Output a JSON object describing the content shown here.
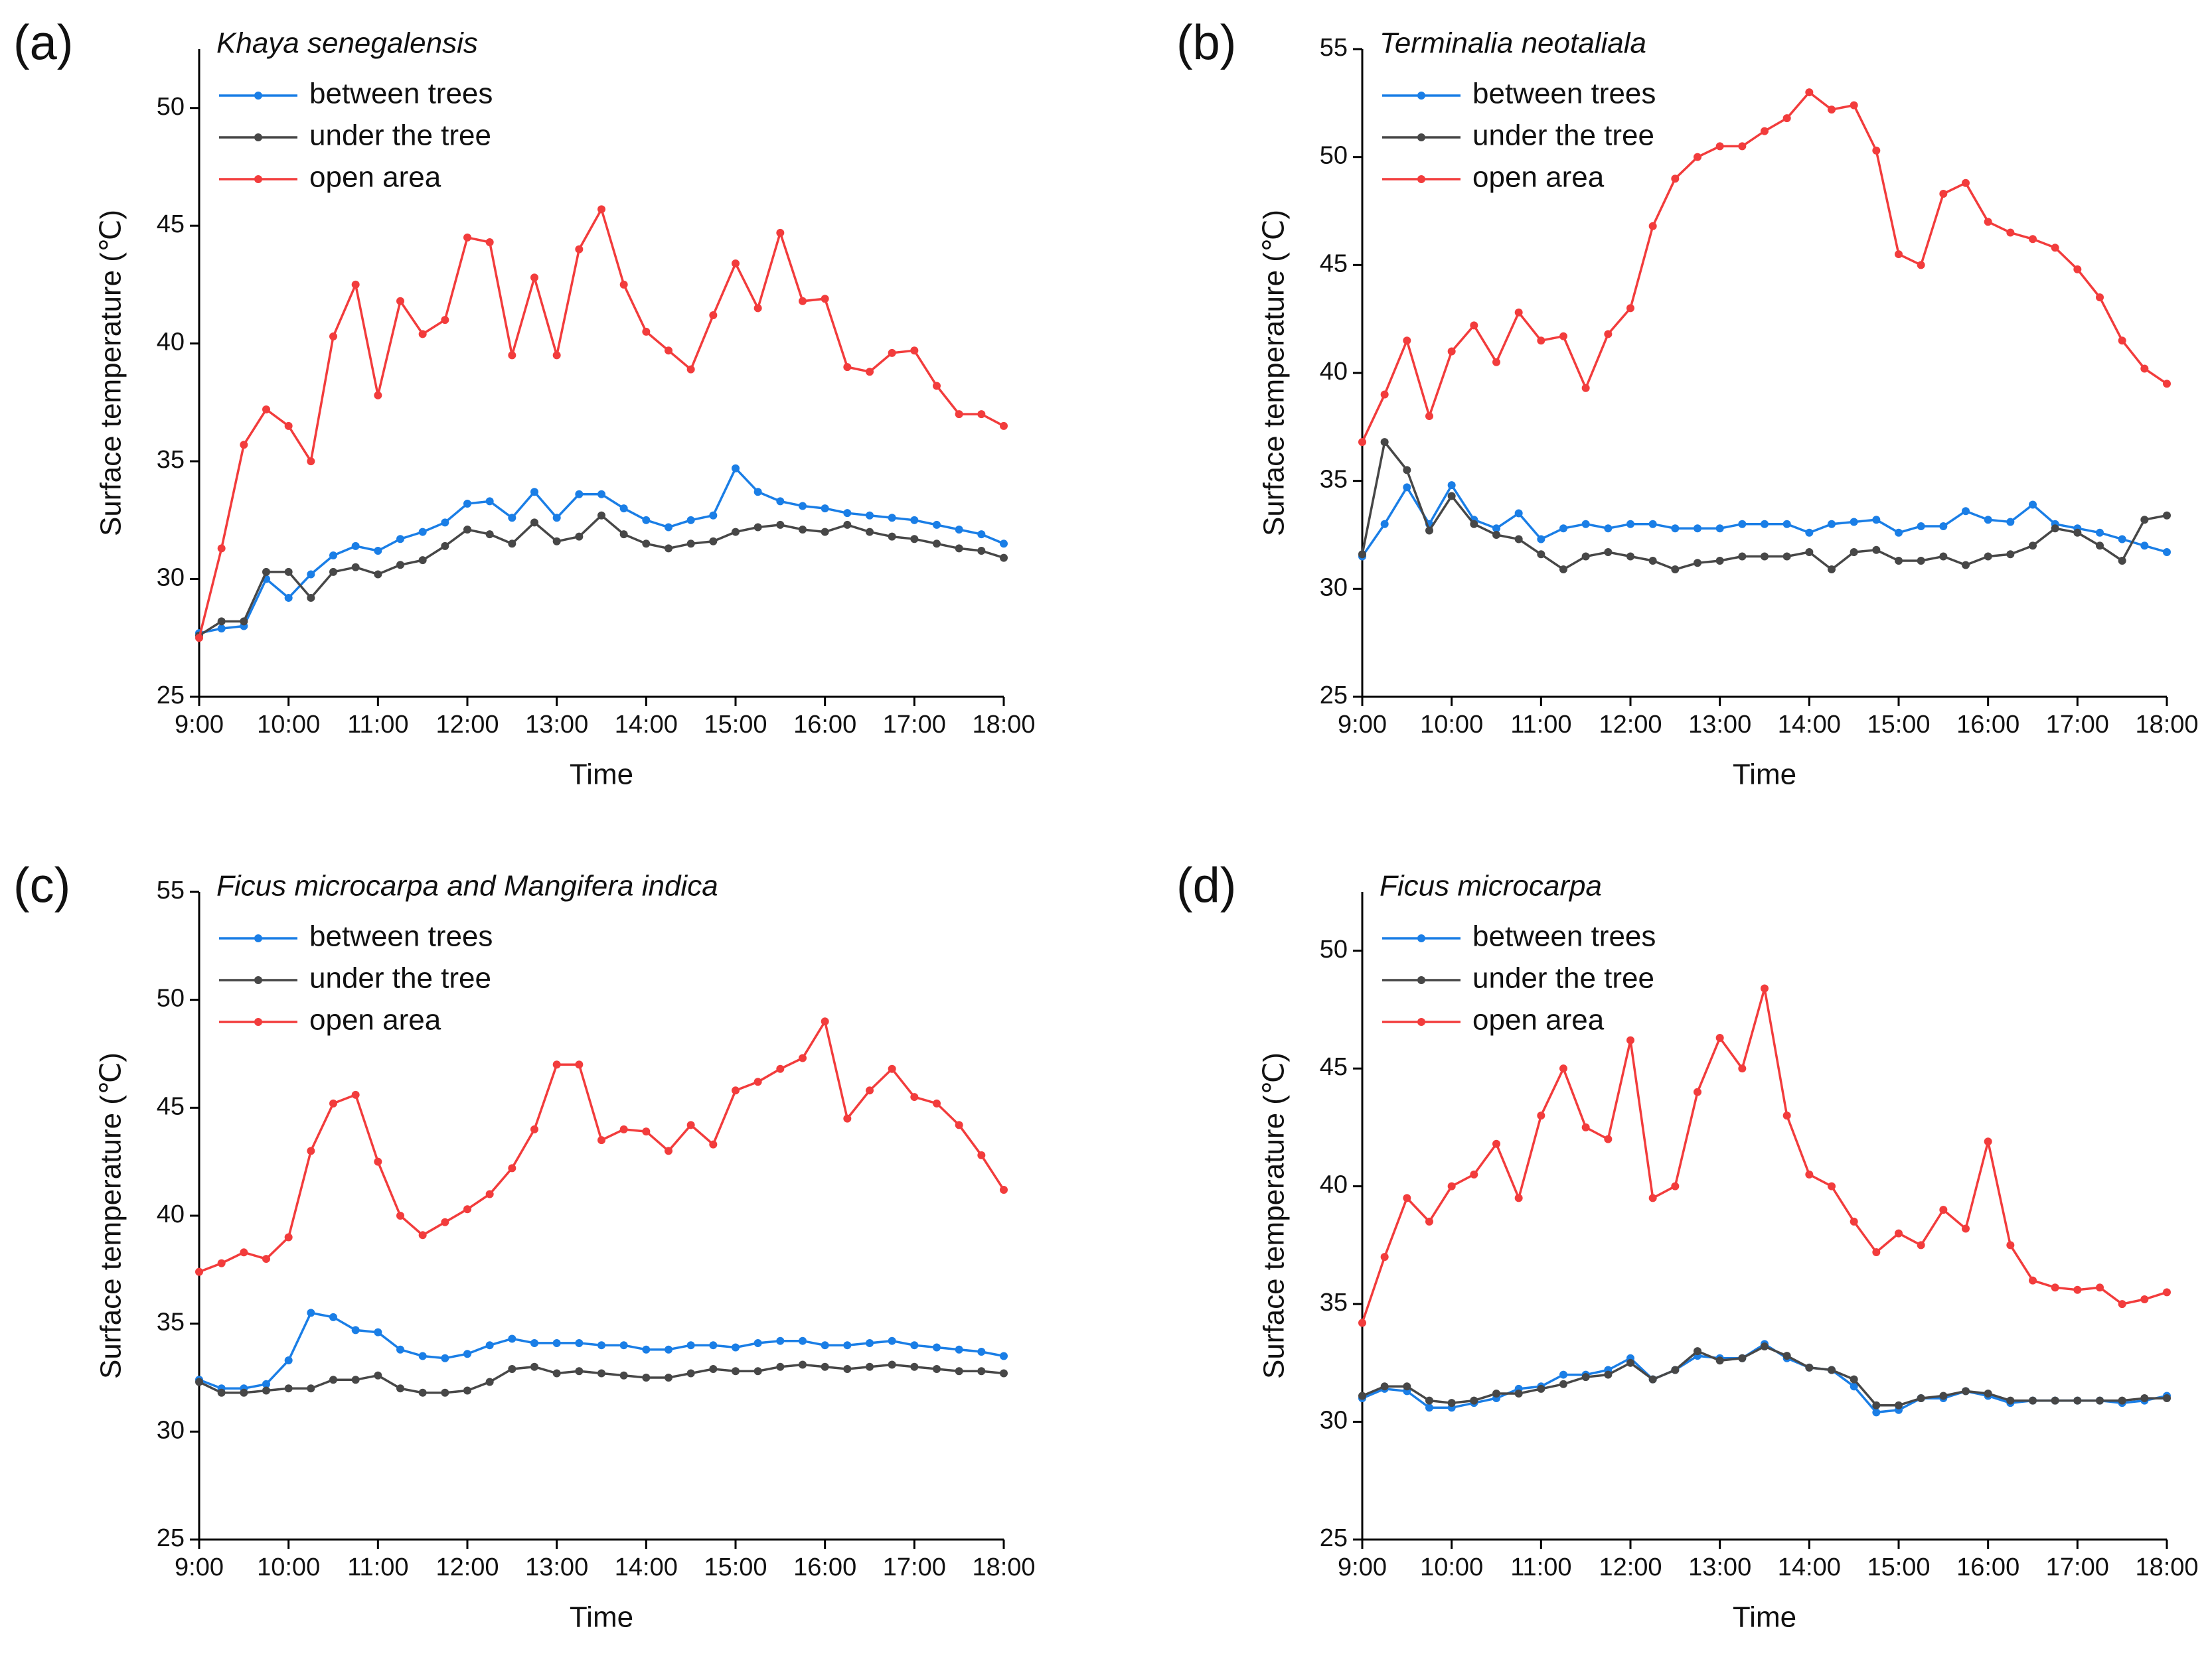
{
  "chart_data": [
    {
      "type": "line",
      "panel_label": "(a)",
      "title": "Khaya senegalensis",
      "xlabel": "Time",
      "ylabel": "Surface temperature (℃)",
      "legend": "upper left",
      "x": [
        9,
        9.25,
        9.5,
        9.75,
        10,
        10.25,
        10.5,
        10.75,
        11,
        11.25,
        11.5,
        11.75,
        12,
        12.25,
        12.5,
        12.75,
        13,
        13.25,
        13.5,
        13.75,
        14,
        14.25,
        14.5,
        14.75,
        15,
        15.25,
        15.5,
        15.75,
        16,
        16.25,
        16.5,
        16.75,
        17,
        17.25,
        17.5,
        17.75,
        18
      ],
      "xlim": [
        9,
        18
      ],
      "xticks": [
        {
          "value": 9,
          "label": "9:00"
        },
        {
          "value": 10,
          "label": "10:00"
        },
        {
          "value": 11,
          "label": "11:00"
        },
        {
          "value": 12,
          "label": "12:00"
        },
        {
          "value": 13,
          "label": "13:00"
        },
        {
          "value": 14,
          "label": "14:00"
        },
        {
          "value": 15,
          "label": "15:00"
        },
        {
          "value": 16,
          "label": "16:00"
        },
        {
          "value": 17,
          "label": "17:00"
        },
        {
          "value": 18,
          "label": "18:00"
        }
      ],
      "ylim": [
        25,
        52.5
      ],
      "yticks": [
        25,
        30,
        35,
        40,
        45,
        50
      ],
      "series": [
        {
          "name": "between trees",
          "color": "#1a7ee6",
          "values": [
            27.7,
            27.9,
            28,
            30,
            29.2,
            30.2,
            31,
            31.4,
            31.2,
            31.7,
            32,
            32.4,
            33.2,
            33.3,
            32.6,
            33.7,
            32.6,
            33.6,
            33.6,
            33,
            32.5,
            32.2,
            32.5,
            32.7,
            34.7,
            33.7,
            33.3,
            33.1,
            33,
            32.8,
            32.7,
            32.6,
            32.5,
            32.3,
            32.1,
            31.9,
            31.5
          ]
        },
        {
          "name": "under the tree",
          "color": "#474747",
          "values": [
            27.6,
            28.2,
            28.2,
            30.3,
            30.3,
            29.2,
            30.3,
            30.5,
            30.2,
            30.6,
            30.8,
            31.4,
            32.1,
            31.9,
            31.5,
            32.4,
            31.6,
            31.8,
            32.7,
            31.9,
            31.5,
            31.3,
            31.5,
            31.6,
            32,
            32.2,
            32.3,
            32.1,
            32,
            32.3,
            32,
            31.8,
            31.7,
            31.5,
            31.3,
            31.2,
            30.9
          ]
        },
        {
          "name": "open area",
          "color": "#f23c3c",
          "values": [
            27.5,
            31.3,
            35.7,
            37.2,
            36.5,
            35,
            40.3,
            42.5,
            37.8,
            41.8,
            40.4,
            41,
            44.5,
            44.3,
            39.5,
            42.8,
            39.5,
            44,
            45.7,
            42.5,
            40.5,
            39.7,
            38.9,
            41.2,
            43.4,
            41.5,
            44.7,
            41.8,
            41.9,
            39,
            38.8,
            39.6,
            39.7,
            38.2,
            37,
            37,
            36.5
          ]
        }
      ]
    },
    {
      "type": "line",
      "panel_label": "(b)",
      "title": "Terminalia neotaliala",
      "xlabel": "Time",
      "ylabel": "Surface temperature (℃)",
      "legend": "upper left",
      "x": [
        9,
        9.25,
        9.5,
        9.75,
        10,
        10.25,
        10.5,
        10.75,
        11,
        11.25,
        11.5,
        11.75,
        12,
        12.25,
        12.5,
        12.75,
        13,
        13.25,
        13.5,
        13.75,
        14,
        14.25,
        14.5,
        14.75,
        15,
        15.25,
        15.5,
        15.75,
        16,
        16.25,
        16.5,
        16.75,
        17,
        17.25,
        17.5,
        17.75,
        18
      ],
      "xlim": [
        9,
        18
      ],
      "xticks": [
        {
          "value": 9,
          "label": "9:00"
        },
        {
          "value": 10,
          "label": "10:00"
        },
        {
          "value": 11,
          "label": "11:00"
        },
        {
          "value": 12,
          "label": "12:00"
        },
        {
          "value": 13,
          "label": "13:00"
        },
        {
          "value": 14,
          "label": "14:00"
        },
        {
          "value": 15,
          "label": "15:00"
        },
        {
          "value": 16,
          "label": "16:00"
        },
        {
          "value": 17,
          "label": "17:00"
        },
        {
          "value": 18,
          "label": "18:00"
        }
      ],
      "ylim": [
        25,
        55
      ],
      "yticks": [
        25,
        30,
        35,
        40,
        45,
        50,
        55
      ],
      "series": [
        {
          "name": "between trees",
          "color": "#1a7ee6",
          "values": [
            31.5,
            33,
            34.7,
            33,
            34.8,
            33.2,
            32.8,
            33.5,
            32.3,
            32.8,
            33,
            32.8,
            33,
            33,
            32.8,
            32.8,
            32.8,
            33,
            33,
            33,
            32.6,
            33,
            33.1,
            33.2,
            32.6,
            32.9,
            32.9,
            33.6,
            33.2,
            33.1,
            33.9,
            33,
            32.8,
            32.6,
            32.3,
            32,
            31.7
          ]
        },
        {
          "name": "under the tree",
          "color": "#474747",
          "values": [
            31.6,
            36.8,
            35.5,
            32.7,
            34.3,
            33,
            32.5,
            32.3,
            31.6,
            30.9,
            31.5,
            31.7,
            31.5,
            31.3,
            30.9,
            31.2,
            31.3,
            31.5,
            31.5,
            31.5,
            31.7,
            30.9,
            31.7,
            31.8,
            31.3,
            31.3,
            31.5,
            31.1,
            31.5,
            31.6,
            32,
            32.8,
            32.6,
            32,
            31.3,
            33.2,
            33.4
          ]
        },
        {
          "name": "open area",
          "color": "#f23c3c",
          "values": [
            36.8,
            39,
            41.5,
            38,
            41,
            42.2,
            40.5,
            42.8,
            41.5,
            41.7,
            39.3,
            41.8,
            43,
            46.8,
            49,
            50,
            50.5,
            50.5,
            51.2,
            51.8,
            53,
            52.2,
            52.4,
            50.3,
            45.5,
            45,
            48.3,
            48.8,
            47,
            46.5,
            46.2,
            45.8,
            44.8,
            43.5,
            41.5,
            40.2,
            39.5
          ]
        }
      ]
    },
    {
      "type": "line",
      "panel_label": "(c)",
      "title": "Ficus microcarpa and Mangifera indica",
      "xlabel": "Time",
      "ylabel": "Surface temperature (℃)",
      "legend": "upper left",
      "x": [
        9,
        9.25,
        9.5,
        9.75,
        10,
        10.25,
        10.5,
        10.75,
        11,
        11.25,
        11.5,
        11.75,
        12,
        12.25,
        12.5,
        12.75,
        13,
        13.25,
        13.5,
        13.75,
        14,
        14.25,
        14.5,
        14.75,
        15,
        15.25,
        15.5,
        15.75,
        16,
        16.25,
        16.5,
        16.75,
        17,
        17.25,
        17.5,
        17.75,
        18
      ],
      "xlim": [
        9,
        18
      ],
      "xticks": [
        {
          "value": 9,
          "label": "9:00"
        },
        {
          "value": 10,
          "label": "10:00"
        },
        {
          "value": 11,
          "label": "11:00"
        },
        {
          "value": 12,
          "label": "12:00"
        },
        {
          "value": 13,
          "label": "13:00"
        },
        {
          "value": 14,
          "label": "14:00"
        },
        {
          "value": 15,
          "label": "15:00"
        },
        {
          "value": 16,
          "label": "16:00"
        },
        {
          "value": 17,
          "label": "17:00"
        },
        {
          "value": 18,
          "label": "18:00"
        }
      ],
      "ylim": [
        25,
        55
      ],
      "yticks": [
        25,
        30,
        35,
        40,
        45,
        50,
        55
      ],
      "series": [
        {
          "name": "between trees",
          "color": "#1a7ee6",
          "values": [
            32.4,
            32,
            32,
            32.2,
            33.3,
            35.5,
            35.3,
            34.7,
            34.6,
            33.8,
            33.5,
            33.4,
            33.6,
            34,
            34.3,
            34.1,
            34.1,
            34.1,
            34,
            34,
            33.8,
            33.8,
            34,
            34,
            33.9,
            34.1,
            34.2,
            34.2,
            34,
            34,
            34.1,
            34.2,
            34,
            33.9,
            33.8,
            33.7,
            33.5
          ]
        },
        {
          "name": "under the tree",
          "color": "#474747",
          "values": [
            32.3,
            31.8,
            31.8,
            31.9,
            32,
            32,
            32.4,
            32.4,
            32.6,
            32,
            31.8,
            31.8,
            31.9,
            32.3,
            32.9,
            33,
            32.7,
            32.8,
            32.7,
            32.6,
            32.5,
            32.5,
            32.7,
            32.9,
            32.8,
            32.8,
            33,
            33.1,
            33,
            32.9,
            33,
            33.1,
            33,
            32.9,
            32.8,
            32.8,
            32.7
          ]
        },
        {
          "name": "open area",
          "color": "#f23c3c",
          "values": [
            37.4,
            37.8,
            38.3,
            38,
            39,
            43,
            45.2,
            45.6,
            42.5,
            40,
            39.1,
            39.7,
            40.3,
            41,
            42.2,
            44,
            47,
            47,
            43.5,
            44,
            43.9,
            43,
            44.2,
            43.3,
            45.8,
            46.2,
            46.8,
            47.3,
            49,
            44.5,
            45.8,
            46.8,
            45.5,
            45.2,
            44.2,
            42.8,
            41.2
          ]
        }
      ]
    },
    {
      "type": "line",
      "panel_label": "(d)",
      "title": "Ficus microcarpa",
      "xlabel": "Time",
      "ylabel": "Surface temperature (℃)",
      "legend": "upper left",
      "x": [
        9,
        9.25,
        9.5,
        9.75,
        10,
        10.25,
        10.5,
        10.75,
        11,
        11.25,
        11.5,
        11.75,
        12,
        12.25,
        12.5,
        12.75,
        13,
        13.25,
        13.5,
        13.75,
        14,
        14.25,
        14.5,
        14.75,
        15,
        15.25,
        15.5,
        15.75,
        16,
        16.25,
        16.5,
        16.75,
        17,
        17.25,
        17.5,
        17.75,
        18
      ],
      "xlim": [
        9,
        18
      ],
      "xticks": [
        {
          "value": 9,
          "label": "9:00"
        },
        {
          "value": 10,
          "label": "10:00"
        },
        {
          "value": 11,
          "label": "11:00"
        },
        {
          "value": 12,
          "label": "12:00"
        },
        {
          "value": 13,
          "label": "13:00"
        },
        {
          "value": 14,
          "label": "14:00"
        },
        {
          "value": 15,
          "label": "15:00"
        },
        {
          "value": 16,
          "label": "16:00"
        },
        {
          "value": 17,
          "label": "17:00"
        },
        {
          "value": 18,
          "label": "18:00"
        }
      ],
      "ylim": [
        25,
        52.5
      ],
      "yticks": [
        25,
        30,
        35,
        40,
        45,
        50
      ],
      "series": [
        {
          "name": "between trees",
          "color": "#1a7ee6",
          "values": [
            31,
            31.4,
            31.3,
            30.6,
            30.6,
            30.8,
            31,
            31.4,
            31.5,
            32,
            32,
            32.2,
            32.7,
            31.8,
            32.2,
            32.8,
            32.7,
            32.7,
            33.3,
            32.7,
            32.3,
            32.2,
            31.5,
            30.4,
            30.5,
            31,
            31,
            31.3,
            31.1,
            30.8,
            30.9,
            30.9,
            30.9,
            30.9,
            30.8,
            30.9,
            31.1
          ]
        },
        {
          "name": "under the tree",
          "color": "#474747",
          "values": [
            31.1,
            31.5,
            31.5,
            30.9,
            30.8,
            30.9,
            31.2,
            31.2,
            31.4,
            31.6,
            31.9,
            32,
            32.5,
            31.8,
            32.2,
            33,
            32.6,
            32.7,
            33.2,
            32.8,
            32.3,
            32.2,
            31.8,
            30.7,
            30.7,
            31,
            31.1,
            31.3,
            31.2,
            30.9,
            30.9,
            30.9,
            30.9,
            30.9,
            30.9,
            31,
            31
          ]
        },
        {
          "name": "open area",
          "color": "#f23c3c",
          "values": [
            34.2,
            37,
            39.5,
            38.5,
            40,
            40.5,
            41.8,
            39.5,
            43,
            45,
            42.5,
            42,
            46.2,
            39.5,
            40,
            44,
            46.3,
            45,
            48.4,
            43,
            40.5,
            40,
            38.5,
            37.2,
            38,
            37.5,
            39,
            38.2,
            41.9,
            37.5,
            36,
            35.7,
            35.6,
            35.7,
            35,
            35.2,
            35.5
          ]
        }
      ]
    }
  ]
}
